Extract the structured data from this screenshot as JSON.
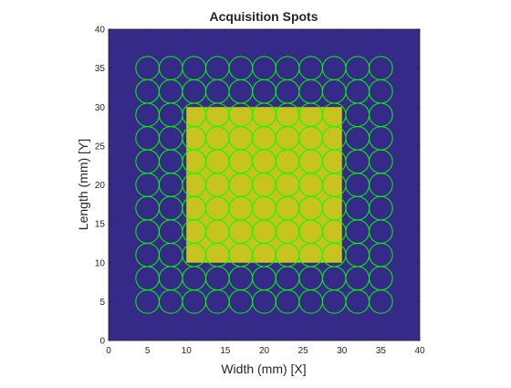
{
  "chart_data": {
    "type": "scatter",
    "title": "Acquisition Spots",
    "xlabel": "Width (mm) [X]",
    "ylabel": "Length (mm) [Y]",
    "xlim": [
      0,
      40
    ],
    "ylim": [
      0,
      40
    ],
    "xticks": [
      "0",
      "5",
      "10",
      "15",
      "20",
      "25",
      "30",
      "35",
      "40"
    ],
    "yticks": [
      "0",
      "5",
      "10",
      "15",
      "20",
      "25",
      "30",
      "35",
      "40"
    ],
    "grid": false,
    "background_color": "#352a87",
    "sample_region": {
      "x": [
        10,
        30
      ],
      "y": [
        10,
        30
      ],
      "color": "#c8c41f"
    },
    "spots": {
      "x_centers": [
        5,
        8,
        11,
        14,
        17,
        20,
        23,
        26,
        29,
        32,
        35
      ],
      "y_centers": [
        5,
        8,
        11,
        14,
        17,
        20,
        23,
        26,
        29,
        32,
        35
      ],
      "radius": 1.5,
      "color": "#00ff00"
    }
  }
}
